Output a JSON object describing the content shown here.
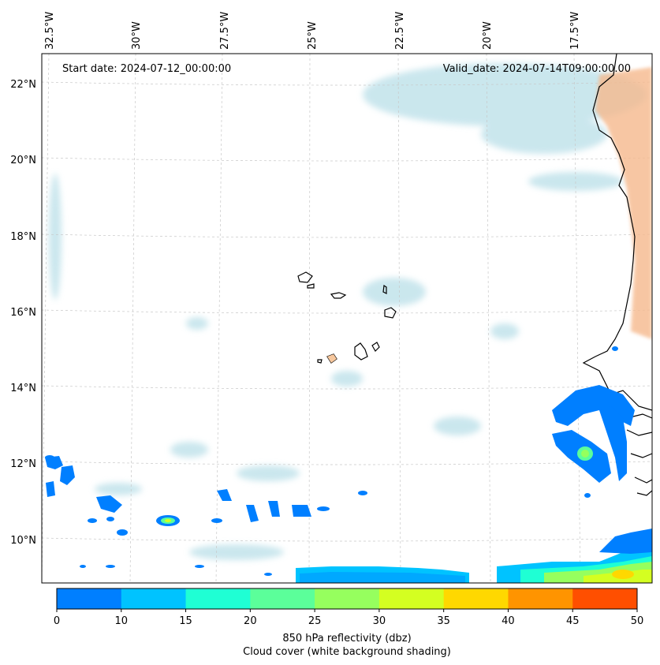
{
  "map": {
    "start_date": "Start date: 2024-07-12_00:00:00",
    "valid_date": "Valid_date: 2024-07-14T09:00:00.00",
    "lon_labels": [
      "32.5°W",
      "30°W",
      "27.5°W",
      "25°W",
      "22.5°W",
      "20°W",
      "17.5°W"
    ],
    "lat_labels": [
      "22°N",
      "20°N",
      "18°N",
      "16°N",
      "14°N",
      "12°N",
      "10°N"
    ],
    "colorbar": {
      "ticks": [
        "0",
        "10",
        "15",
        "20",
        "25",
        "30",
        "35",
        "40",
        "45",
        "50"
      ],
      "colors": [
        "#007fff",
        "#00c3ff",
        "#1fffd4",
        "#5bff9a",
        "#96ff5e",
        "#d4ff21",
        "#ffd800",
        "#ff9400",
        "#ff4f00"
      ],
      "label_line1": "850 hPa reflectivity (dbz)",
      "label_line2": "Cloud cover (white background shading)"
    },
    "colors": {
      "cloud": "#a8d8e2",
      "dust": "#f4a46a",
      "coast": "#000000"
    }
  }
}
